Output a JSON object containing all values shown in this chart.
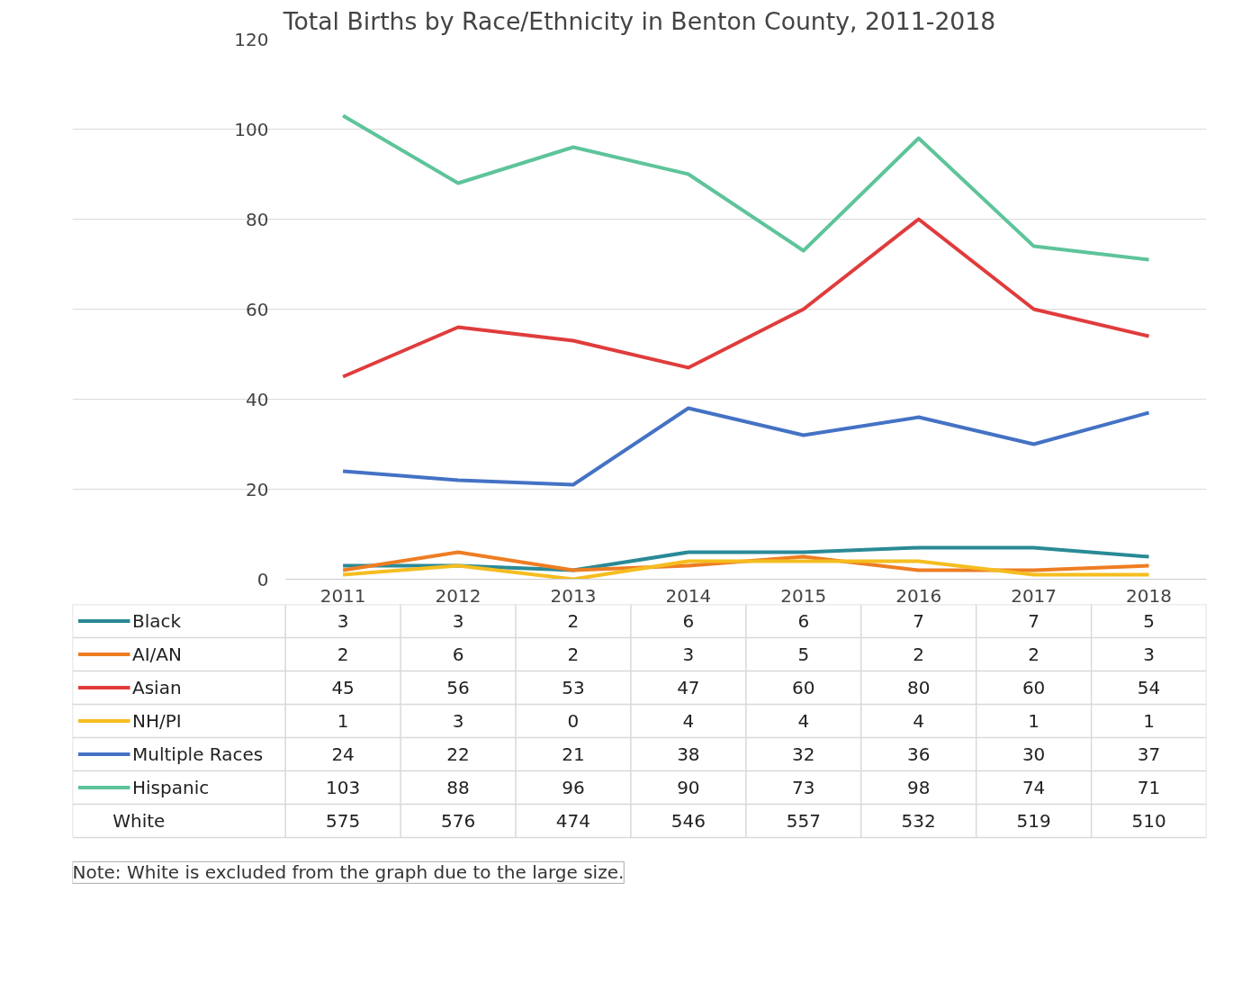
{
  "chart_data": {
    "type": "line",
    "title": "Total Births by Race/Ethnicity in Benton County, 2011-2018",
    "categories": [
      "2011",
      "2012",
      "2013",
      "2014",
      "2015",
      "2016",
      "2017",
      "2018"
    ],
    "series": [
      {
        "name": "Black",
        "color": "#2a8a96",
        "values": [
          3,
          3,
          2,
          6,
          6,
          7,
          7,
          5
        ]
      },
      {
        "name": "AI/AN",
        "color": "#ee7d22",
        "values": [
          2,
          6,
          2,
          3,
          5,
          2,
          2,
          3
        ]
      },
      {
        "name": "Asian",
        "color": "#e03c3c",
        "values": [
          45,
          56,
          53,
          47,
          60,
          80,
          60,
          54
        ]
      },
      {
        "name": "NH/PI",
        "color": "#f5bd1f",
        "values": [
          1,
          3,
          0,
          4,
          4,
          4,
          1,
          1
        ]
      },
      {
        "name": "Multiple Races",
        "color": "#4472c4",
        "values": [
          24,
          22,
          21,
          38,
          32,
          36,
          30,
          37
        ]
      },
      {
        "name": "Hispanic",
        "color": "#5ec49a",
        "values": [
          103,
          88,
          96,
          90,
          73,
          98,
          74,
          71
        ]
      },
      {
        "name": "White",
        "type": "other",
        "values": [
          null,
          null,
          null,
          null,
          null,
          null,
          null,
          null
        ],
        "value_labels": [
          "575",
          "576",
          "474",
          "546",
          "557",
          "532",
          "519",
          "510"
        ]
      }
    ],
    "ylim": [
      0,
      120
    ],
    "yticks": [
      0,
      20,
      40,
      60,
      80,
      100,
      120
    ],
    "grid": "y",
    "legend": "bottom",
    "data_labels": true,
    "marker": "none",
    "line_style": "solid",
    "annotations": [
      "Note: White is excluded from the graph due to the large size."
    ]
  }
}
